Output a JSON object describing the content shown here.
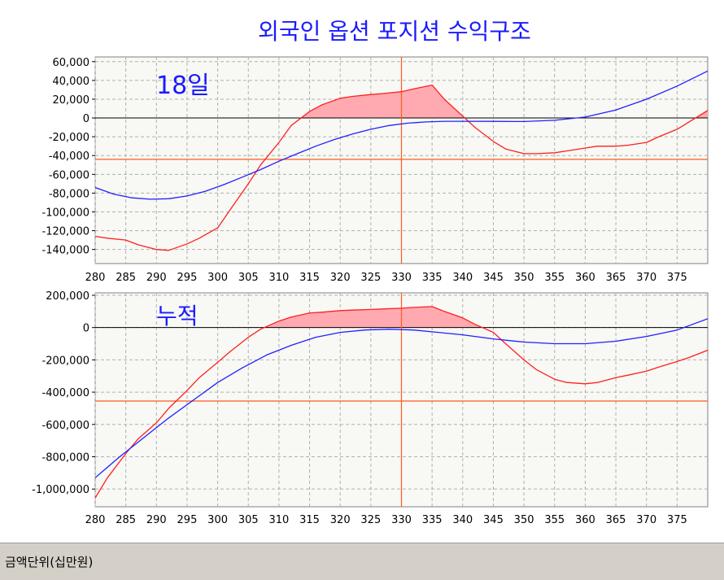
{
  "title": "외국인 옵션 포지션 수익구조",
  "footer_label": "금액단위(십만원)",
  "colors": {
    "plot_bg": "#f8f8f4",
    "grid": "#b0b0b0",
    "red": "#ff2020",
    "blue": "#2020ff",
    "fill": "#ffaab0",
    "zero_line": "#000000",
    "ref_line": "#ff5a1e",
    "label_blue": "#1a1aff"
  },
  "chart_data": [
    {
      "type": "line",
      "label": "18일",
      "xlim": [
        280,
        380
      ],
      "ylim": [
        -155000,
        65000
      ],
      "x_ticks": [
        280,
        285,
        290,
        295,
        300,
        305,
        310,
        315,
        320,
        325,
        330,
        335,
        340,
        345,
        350,
        355,
        360,
        365,
        370,
        375
      ],
      "y_ticks": [
        60000,
        40000,
        20000,
        0,
        -20000,
        -40000,
        -60000,
        -80000,
        -100000,
        -120000,
        -140000
      ],
      "y_tick_labels": [
        "60,000",
        "40,000",
        "20,000",
        "0",
        "-20,000",
        "-40,000",
        "-60,000",
        "-80,000",
        "-100,000",
        "-120,000",
        "-140,000"
      ],
      "x_tick_labels": [
        "280",
        "285",
        "290",
        "295",
        "300",
        "305",
        "310",
        "315",
        "320",
        "325",
        "330",
        "335",
        "340",
        "345",
        "350",
        "355",
        "360",
        "365",
        "370",
        "375"
      ],
      "vline_x": 330,
      "hline_y": -44000,
      "series": [
        {
          "color": "red",
          "x": [
            280,
            282,
            285,
            287,
            290,
            292,
            295,
            297,
            300,
            302,
            305,
            307,
            310,
            312,
            315,
            317,
            320,
            322,
            325,
            327,
            330,
            332,
            335,
            337,
            340,
            342,
            345,
            347,
            350,
            352,
            355,
            357,
            360,
            362,
            365,
            367,
            370,
            372,
            375,
            377,
            380
          ],
          "y": [
            -126000,
            -128000,
            -130000,
            -135000,
            -140000,
            -141000,
            -134000,
            -128000,
            -117000,
            -98000,
            -70000,
            -50000,
            -26000,
            -8000,
            7000,
            14000,
            21000,
            23000,
            25000,
            26000,
            28000,
            31000,
            35000,
            20000,
            2000,
            -10000,
            -25000,
            -33000,
            -38000,
            -38000,
            -37000,
            -35000,
            -32000,
            -30000,
            -30000,
            -29000,
            -26000,
            -20000,
            -12000,
            -4000,
            8000
          ]
        },
        {
          "color": "blue",
          "x": [
            280,
            283,
            286,
            289,
            292,
            295,
            298,
            301,
            304,
            307,
            310,
            313,
            316,
            319,
            322,
            325,
            328,
            331,
            334,
            337,
            340,
            345,
            350,
            355,
            360,
            365,
            370,
            375,
            380
          ],
          "y": [
            -74000,
            -81000,
            -85000,
            -86500,
            -86000,
            -83000,
            -78000,
            -71000,
            -63000,
            -55000,
            -46000,
            -38000,
            -30000,
            -23000,
            -17000,
            -12000,
            -8000,
            -5500,
            -4200,
            -3500,
            -3500,
            -3600,
            -3800,
            -2500,
            1000,
            8500,
            20000,
            34000,
            50000
          ]
        }
      ]
    },
    {
      "type": "line",
      "label": "누적",
      "xlim": [
        280,
        380
      ],
      "ylim": [
        -1110000,
        215000
      ],
      "x_ticks": [
        280,
        285,
        290,
        295,
        300,
        305,
        310,
        315,
        320,
        325,
        330,
        335,
        340,
        345,
        350,
        355,
        360,
        365,
        370,
        375
      ],
      "y_ticks": [
        200000,
        0,
        -200000,
        -400000,
        -600000,
        -800000,
        -1000000
      ],
      "y_tick_labels": [
        "200,000",
        "0",
        "-200,000",
        "-400,000",
        "-600,000",
        "-800,000",
        "-1,000,000"
      ],
      "x_tick_labels": [
        "280",
        "285",
        "290",
        "295",
        "300",
        "305",
        "310",
        "315",
        "320",
        "325",
        "330",
        "335",
        "340",
        "345",
        "350",
        "355",
        "360",
        "365",
        "370",
        "375"
      ],
      "vline_x": 330,
      "hline_y": -455000,
      "series": [
        {
          "color": "red",
          "x": [
            280,
            282,
            285,
            287,
            290,
            292,
            295,
            297,
            300,
            302,
            305,
            307,
            310,
            312,
            315,
            317,
            320,
            322,
            325,
            327,
            330,
            332,
            335,
            337,
            340,
            342,
            345,
            347,
            350,
            352,
            355,
            357,
            360,
            362,
            365,
            367,
            370,
            372,
            375,
            377,
            380
          ],
          "y": [
            -1055000,
            -930000,
            -780000,
            -690000,
            -590000,
            -500000,
            -390000,
            -310000,
            -215000,
            -150000,
            -60000,
            -10000,
            40000,
            65000,
            90000,
            95000,
            105000,
            108000,
            112000,
            115000,
            120000,
            125000,
            130000,
            100000,
            60000,
            20000,
            -30000,
            -100000,
            -200000,
            -260000,
            -320000,
            -340000,
            -348000,
            -340000,
            -310000,
            -295000,
            -270000,
            -245000,
            -210000,
            -185000,
            -140000
          ]
        },
        {
          "color": "blue",
          "x": [
            280,
            284,
            288,
            292,
            296,
            300,
            304,
            308,
            312,
            316,
            320,
            324,
            328,
            332,
            336,
            340,
            345,
            350,
            355,
            360,
            365,
            370,
            375,
            380
          ],
          "y": [
            -930000,
            -800000,
            -680000,
            -560000,
            -450000,
            -340000,
            -250000,
            -170000,
            -110000,
            -60000,
            -30000,
            -15000,
            -10000,
            -15000,
            -30000,
            -45000,
            -70000,
            -90000,
            -100000,
            -100000,
            -85000,
            -55000,
            -15000,
            55000
          ]
        }
      ]
    }
  ]
}
